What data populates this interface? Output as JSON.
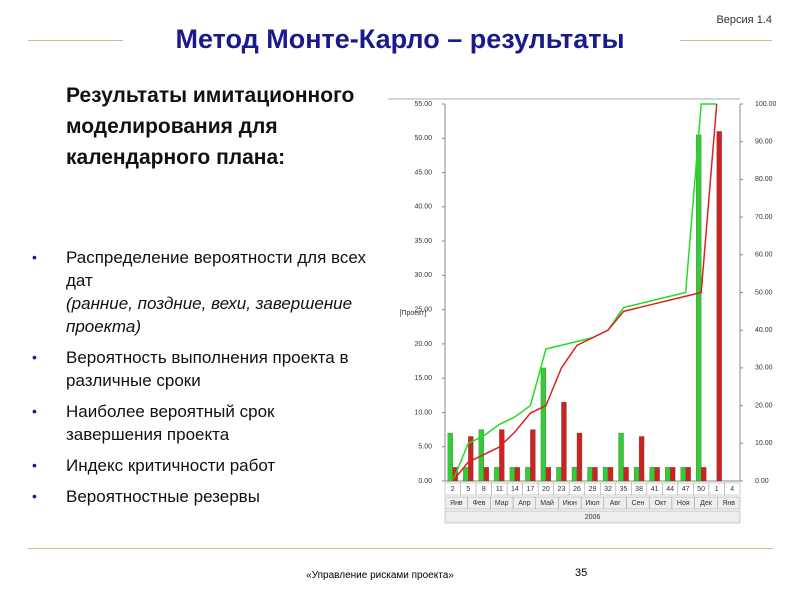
{
  "header": {
    "version": "Версия 1.4",
    "title": "Метод Монте-Карло – результаты"
  },
  "heading": "Результаты имитационного моделирования для календарного плана:",
  "bullets": [
    {
      "text": "Распределение вероятности для всех дат",
      "note": "(ранние, поздние, вехи, завершение проекта)"
    },
    {
      "text": "Вероятность выполнения проекта в различные сроки"
    },
    {
      "text": "Наиболее вероятный срок завершения проекта"
    },
    {
      "text": "Индекс критичности работ"
    },
    {
      "text": "Вероятностные резервы"
    }
  ],
  "chart_data": {
    "type": "bar",
    "y_label": "[Проект]",
    "categories": [
      "2",
      "5",
      "8",
      "11",
      "14",
      "17",
      "20",
      "23",
      "26",
      "29",
      "32",
      "35",
      "38",
      "41",
      "44",
      "47",
      "50",
      "1",
      "4"
    ],
    "months": [
      "Янв",
      "Фев",
      "Мар",
      "Апр",
      "Май",
      "Июн",
      "Июл",
      "Авг",
      "Сен",
      "Окт",
      "Ноя",
      "Дек",
      "Янв"
    ],
    "year": "2006",
    "ylim": [
      0,
      55
    ],
    "yticks": [
      {
        "value": 0,
        "label": "0.00"
      },
      {
        "value": 5,
        "label": "5.00"
      },
      {
        "value": 10,
        "label": "10.00"
      },
      {
        "value": 15,
        "label": "15.00"
      },
      {
        "value": 20,
        "label": "20.00"
      },
      {
        "value": 25,
        "label": "25.00"
      },
      {
        "value": 30,
        "label": "30.00"
      },
      {
        "value": 35,
        "label": "35.00"
      },
      {
        "value": 40,
        "label": "40.00"
      },
      {
        "value": 45,
        "label": "45.00"
      },
      {
        "value": 50,
        "label": "50.00"
      },
      {
        "value": 55,
        "label": "55.00"
      }
    ],
    "y2lim": [
      0,
      100
    ],
    "y2ticks": [
      {
        "value": 0,
        "label": "0.00"
      },
      {
        "value": 10,
        "label": "10.00"
      },
      {
        "value": 20,
        "label": "20.00"
      },
      {
        "value": 30,
        "label": "30.00"
      },
      {
        "value": 40,
        "label": "40.00"
      },
      {
        "value": 50,
        "label": "50.00"
      },
      {
        "value": 60,
        "label": "60.00"
      },
      {
        "value": 70,
        "label": "70.00"
      },
      {
        "value": 80,
        "label": "80.00"
      },
      {
        "value": 90,
        "label": "90.00"
      },
      {
        "value": 100,
        "label": "100.00"
      }
    ],
    "series": [
      {
        "type": "bar",
        "color": "#33cc33",
        "values": [
          7,
          2,
          7.5,
          2,
          2,
          2,
          16.5,
          2,
          2,
          2,
          2,
          7,
          2,
          2,
          2,
          2,
          50.5,
          0,
          0
        ]
      },
      {
        "type": "bar",
        "color": "#cc2222",
        "values": [
          2,
          6.5,
          2,
          7.5,
          2,
          7.5,
          2,
          11.5,
          7,
          2,
          2,
          2,
          6.5,
          2,
          2,
          2,
          2,
          51,
          0
        ]
      },
      {
        "type": "line",
        "axis": "y2",
        "color": "#22dd22",
        "values": [
          0,
          10,
          12,
          15,
          17,
          20,
          35,
          36,
          37,
          38,
          40,
          46,
          47,
          48,
          49,
          50,
          100,
          100,
          null
        ]
      },
      {
        "type": "line",
        "axis": "y2",
        "color": "#dd2222",
        "values": [
          0,
          5,
          7,
          9,
          13,
          18,
          20,
          30,
          36,
          38,
          40,
          45,
          46,
          47,
          48,
          49,
          50,
          100,
          null
        ]
      }
    ]
  },
  "footer": {
    "text": "«Управление рисками проекта»",
    "page": "35"
  }
}
